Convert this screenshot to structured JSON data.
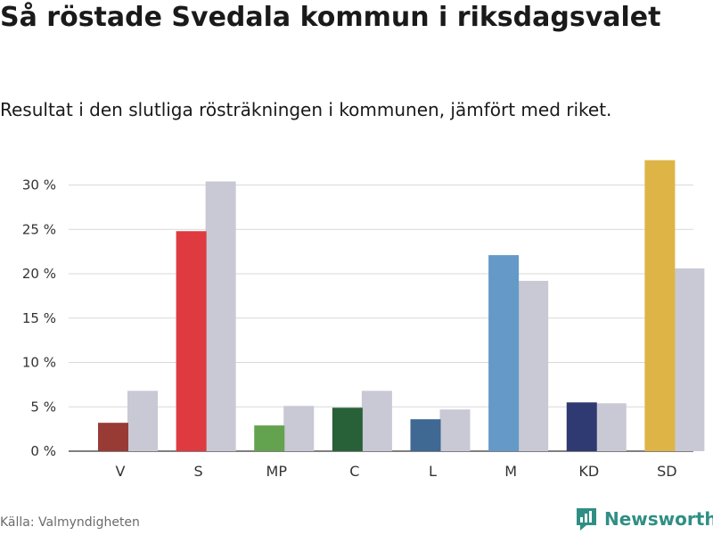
{
  "title": "Så röstade Svedala kommun i riksdagsvalet",
  "subtitle": "Resultat i den slutliga rösträkningen i kommunen, jämfört med riket.",
  "source": "Källa: Valmyndigheten",
  "brand": {
    "name": "Newsworthy",
    "icon": "newsworthy-logo-icon",
    "color": "#2f8f84"
  },
  "colors": {
    "comparison": "#c9c8d5",
    "grid": "#d9d9d9",
    "axis": "#333333"
  },
  "chart_data": {
    "type": "bar",
    "categories": [
      "V",
      "S",
      "MP",
      "C",
      "L",
      "M",
      "KD",
      "SD"
    ],
    "series": [
      {
        "name": "Svedala kommun",
        "values": [
          3.2,
          24.8,
          2.9,
          4.9,
          3.6,
          22.1,
          5.5,
          32.8
        ],
        "colors": [
          "#983b35",
          "#de3a40",
          "#63a24e",
          "#286038",
          "#3f6893",
          "#6499c8",
          "#2f3a72",
          "#deb447"
        ]
      },
      {
        "name": "Riket",
        "values": [
          6.8,
          30.4,
          5.1,
          6.8,
          4.7,
          19.2,
          5.4,
          20.6
        ],
        "color": "#c9c8d5"
      }
    ],
    "yticks": [
      0,
      5,
      10,
      15,
      20,
      25,
      30
    ],
    "ytick_labels": [
      "0 %",
      "5 %",
      "10 %",
      "15 %",
      "20 %",
      "25 %",
      "30 %"
    ],
    "ylim": [
      0,
      33
    ],
    "xlabel": "",
    "ylabel": "",
    "grid": true
  }
}
